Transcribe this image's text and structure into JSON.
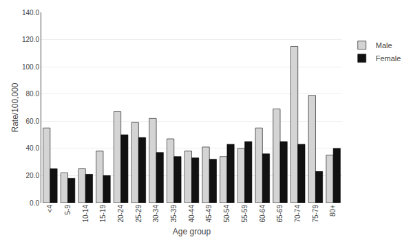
{
  "chart_data": {
    "type": "bar",
    "categories": [
      "<4",
      "5-9",
      "10-14",
      "15-19",
      "20-24",
      "25-29",
      "30-34",
      "35-39",
      "40-44",
      "45-49",
      "50-54",
      "55-59",
      "60-64",
      "65-69",
      "70-74",
      "75-79",
      "80+"
    ],
    "series": [
      {
        "name": "Male",
        "color": "#d4d4d4",
        "values": [
          55.0,
          22.0,
          25.0,
          38.0,
          67.0,
          59.0,
          62.0,
          47.0,
          38.0,
          41.0,
          34.0,
          40.0,
          55.0,
          69.0,
          115.0,
          79.0,
          35.0
        ]
      },
      {
        "name": "Female",
        "color": "#111111",
        "values": [
          25.0,
          18.0,
          21.0,
          20.0,
          50.0,
          48.0,
          37.0,
          34.0,
          33.0,
          32.0,
          43.0,
          45.0,
          36.0,
          45.0,
          43.0,
          23.0,
          40.0
        ]
      }
    ],
    "xlabel": "Age group",
    "ylabel": "Rate/100,000",
    "ylim": [
      0,
      140
    ],
    "yticks": [
      {
        "value": 0,
        "label": "0.0"
      },
      {
        "value": 20,
        "label": "20.0"
      },
      {
        "value": 40,
        "label": "40.0"
      },
      {
        "value": 60,
        "label": "60.0"
      },
      {
        "value": 80,
        "label": "80.0"
      },
      {
        "value": 100,
        "label": "100.0"
      },
      {
        "value": 120,
        "label": "120.0"
      },
      {
        "value": 140,
        "label": "140.0"
      }
    ],
    "grid": true,
    "legend": "right"
  }
}
